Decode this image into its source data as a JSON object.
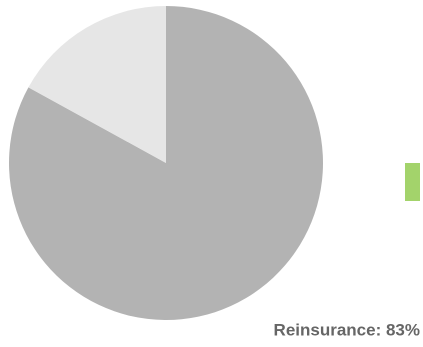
{
  "chart_data": {
    "type": "pie",
    "values": [
      83,
      17
    ],
    "value_labels": [
      "Reinsurance: 83%",
      null
    ],
    "colors": [
      "#b3b3b3",
      "#e6e6e6"
    ]
  }
}
